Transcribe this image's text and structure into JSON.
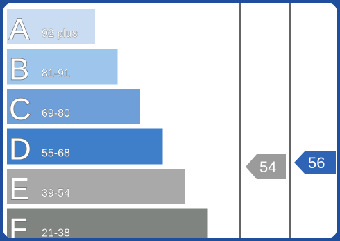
{
  "chart_data": {
    "type": "bar",
    "title": "",
    "categories": [
      "A",
      "B",
      "C",
      "D",
      "E",
      "F"
    ],
    "ranges": [
      "92 plus",
      "81-91",
      "69-80",
      "55-68",
      "39-54",
      "21-38"
    ],
    "values": [
      1,
      2,
      3,
      4,
      5,
      6
    ],
    "colors": [
      "#c9dcf2",
      "#9ec5ec",
      "#6f9fd8",
      "#3f7ec8",
      "#a9a9a9",
      "#808481"
    ],
    "markers": [
      {
        "label": "54",
        "color": "#9b9b9b",
        "column": "current"
      },
      {
        "label": "56",
        "color": "#2f63b6",
        "column": "potential"
      }
    ],
    "legend": "none",
    "grid": false
  }
}
